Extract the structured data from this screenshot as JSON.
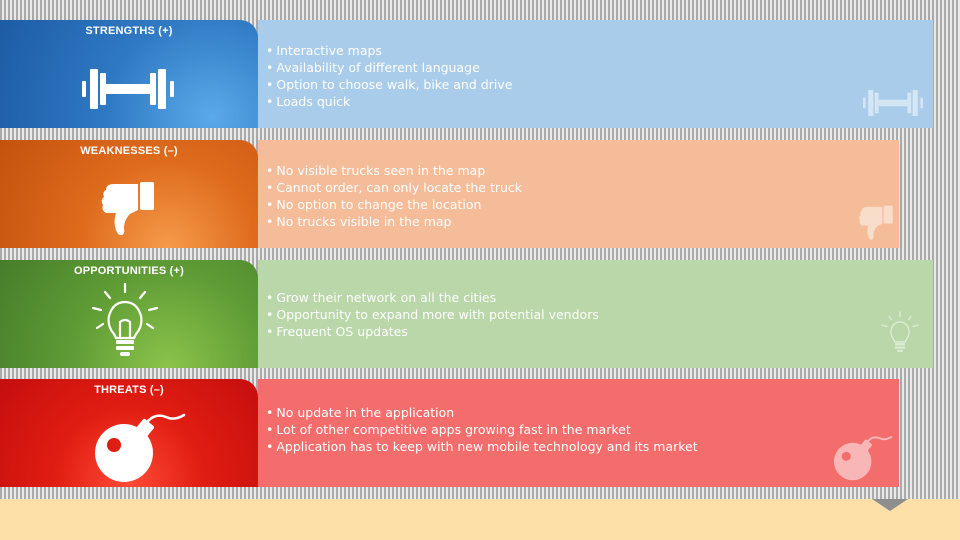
{
  "sections": [
    {
      "title": "STRENGTHS (+)",
      "icon": "dumbbell-icon",
      "color": "#2f79c3",
      "bg": "#a9ccea",
      "items": [
        "Interactive maps",
        "Availability of different language",
        "Option to choose walk, bike and drive",
        "Loads quick"
      ]
    },
    {
      "title": "WEAKNESSES (–)",
      "icon": "thumbs-down-icon",
      "color": "#de6a1c",
      "bg": "#f4bc98",
      "items": [
        "No visible trucks seen in the map",
        "Cannot order, can only locate the truck",
        "No option to change the location",
        "No trucks visible in the map"
      ]
    },
    {
      "title": "OPPORTUNITIES (+)",
      "icon": "lightbulb-icon",
      "color": "#5e9b35",
      "bg": "#b9d7a8",
      "items": [
        "Grow their network on all the cities",
        "Opportunity to expand more with potential vendors",
        "Frequent OS updates"
      ]
    },
    {
      "title": "THREATS (–)",
      "icon": "bomb-icon",
      "color": "#e01d12",
      "bg": "#f36d6d",
      "items": [
        "No update in the application",
        "Lot of other competitive apps growing fast in the market",
        "Application has to keep with new mobile technology and its market"
      ]
    }
  ]
}
